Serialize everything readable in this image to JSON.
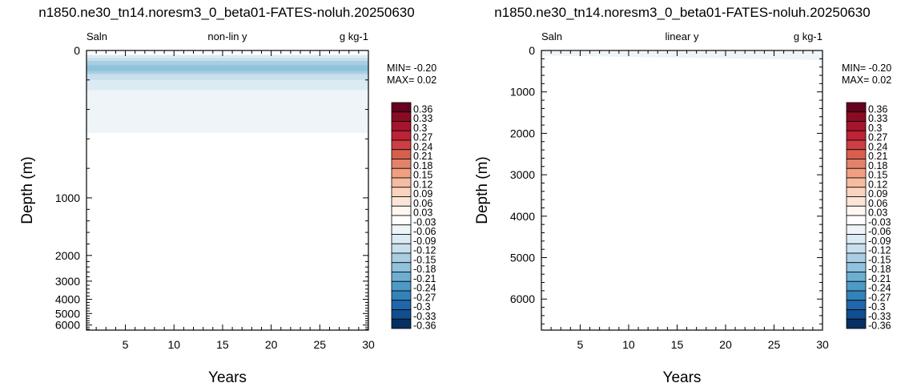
{
  "chart_data": [
    {
      "type": "heatmap",
      "title": "n1850.ne30_tn14.noresm3_0_beta01-FATES-noluh.20250630",
      "variable": "Saln",
      "scale_label": "non-lin y",
      "units": "g kg-1",
      "xlabel": "Years",
      "ylabel": "Depth (m)",
      "xlim": [
        1,
        30
      ],
      "ylim": [
        6500,
        0
      ],
      "y_scale": "non-linear",
      "x_ticks": [
        5,
        10,
        15,
        20,
        25,
        30
      ],
      "x_tick_labels": [
        "5",
        "10",
        "15",
        "20",
        "25",
        "30"
      ],
      "y_ticks": [
        0,
        1000,
        2000,
        3000,
        4000,
        5000,
        6000
      ],
      "y_tick_labels": [
        "0",
        "1000",
        "2000",
        "3000",
        "4000",
        "5000",
        "6000"
      ],
      "min_label": "MIN= -0.20",
      "max_label": "MAX=  0.02",
      "field": [
        {
          "level": -0.06,
          "x": [
            1,
            30
          ],
          "depth_top": [
            60,
            60
          ],
          "depth_bottom": [
            560,
            560
          ]
        },
        {
          "level": -0.09,
          "x": [
            1,
            30
          ],
          "depth_top": [
            30,
            30
          ],
          "depth_bottom": [
            270,
            270
          ]
        },
        {
          "level": -0.12,
          "x": [
            1,
            30
          ],
          "depth_top": [
            50,
            50
          ],
          "depth_bottom": [
            200,
            200
          ]
        },
        {
          "level": -0.15,
          "x": [
            1,
            30
          ],
          "depth_top": [
            70,
            70
          ],
          "depth_bottom": [
            160,
            160
          ]
        },
        {
          "level": -0.18,
          "x": [
            1,
            30
          ],
          "depth_top": [
            100,
            100
          ],
          "depth_bottom": [
            140,
            140
          ]
        }
      ]
    },
    {
      "type": "heatmap",
      "title": "n1850.ne30_tn14.noresm3_0_beta01-FATES-noluh.20250630",
      "variable": "Saln",
      "scale_label": "linear y",
      "units": "g kg-1",
      "xlabel": "Years",
      "ylabel": "Depth (m)",
      "xlim": [
        1,
        30
      ],
      "ylim": [
        6750,
        0
      ],
      "y_scale": "linear",
      "x_ticks": [
        5,
        10,
        15,
        20,
        25,
        30
      ],
      "x_tick_labels": [
        "5",
        "10",
        "15",
        "20",
        "25",
        "30"
      ],
      "y_ticks": [
        0,
        1000,
        2000,
        3000,
        4000,
        5000,
        6000
      ],
      "y_tick_labels": [
        "0",
        "1000",
        "2000",
        "3000",
        "4000",
        "5000",
        "6000"
      ],
      "min_label": "MIN= -0.20",
      "max_label": "MAX=  0.02",
      "field": [
        {
          "level": -0.06,
          "x": [
            1,
            30
          ],
          "depth_top": [
            20,
            20
          ],
          "depth_bottom": [
            120,
            230
          ]
        }
      ]
    }
  ],
  "colorbar": {
    "levels": [
      "0.36",
      "0.33",
      "0.3",
      "0.27",
      "0.24",
      "0.21",
      "0.18",
      "0.15",
      "0.12",
      "0.09",
      "0.06",
      "0.03",
      "-0.03",
      "-0.06",
      "-0.09",
      "-0.12",
      "-0.15",
      "-0.18",
      "-0.21",
      "-0.24",
      "-0.27",
      "-0.3",
      "-0.33",
      "-0.36"
    ],
    "colors": [
      "#67001f",
      "#8a0c24",
      "#a6142d",
      "#bd2335",
      "#cc3f43",
      "#d6604d",
      "#e3826a",
      "#f0a081",
      "#f5bca2",
      "#f9d3be",
      "#fbe5d8",
      "#fef6f1",
      "#ffffff",
      "#eef4f8",
      "#dcebf3",
      "#c8dfec",
      "#a9cde3",
      "#8fc2dd",
      "#6eaed3",
      "#4e9ac6",
      "#3482ba",
      "#2066ac",
      "#104e8f",
      "#053061"
    ]
  }
}
